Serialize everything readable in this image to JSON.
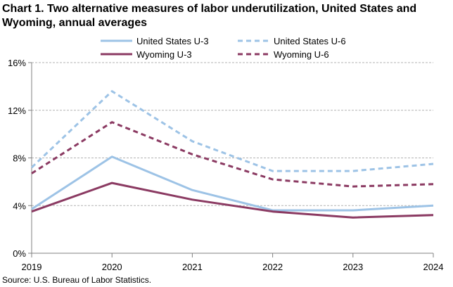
{
  "chart_data": {
    "type": "line",
    "title": "Chart 1. Two alternative measures of labor underutilization, United States and Wyoming, annual averages",
    "x": [
      "2019",
      "2020",
      "2021",
      "2022",
      "2023",
      "2024"
    ],
    "ylim": [
      0,
      16
    ],
    "yticks": [
      0,
      4,
      8,
      12,
      16
    ],
    "ytick_labels": [
      "0%",
      "4%",
      "8%",
      "12%",
      "16%"
    ],
    "grid": true,
    "legend_position": "top",
    "series": [
      {
        "name": "United States U-3",
        "values": [
          3.7,
          8.1,
          5.3,
          3.6,
          3.6,
          4.0
        ],
        "color": "#9DC3E6",
        "dash": "solid"
      },
      {
        "name": "United States U-6",
        "values": [
          7.2,
          13.6,
          9.4,
          6.9,
          6.9,
          7.5
        ],
        "color": "#9DC3E6",
        "dash": "dashed"
      },
      {
        "name": "Wyoming U-3",
        "values": [
          3.5,
          5.9,
          4.5,
          3.5,
          3.0,
          3.2
        ],
        "color": "#8B3A62",
        "dash": "solid"
      },
      {
        "name": "Wyoming U-6",
        "values": [
          6.7,
          11.0,
          8.3,
          6.2,
          5.6,
          5.8
        ],
        "color": "#8B3A62",
        "dash": "dashed"
      }
    ],
    "source": "Source: U.S. Bureau of Labor Statistics."
  }
}
